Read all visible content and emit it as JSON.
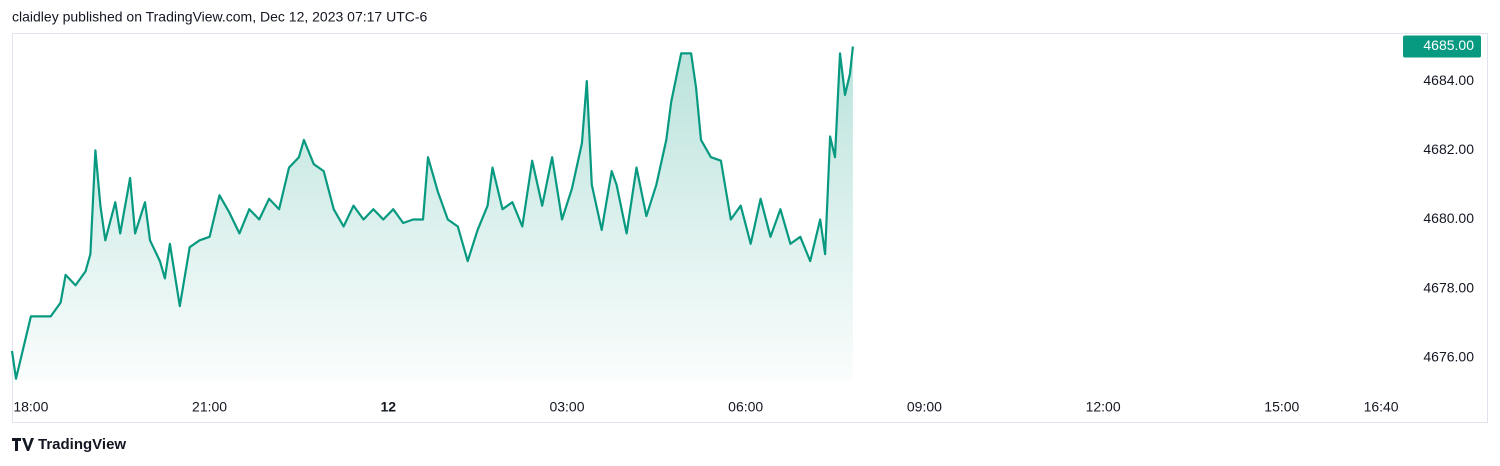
{
  "chart_data": {
    "type": "area-line",
    "title": "claidley published on TradingView.com, Dec 12, 2023 07:17 UTC-6",
    "brand": "TradingView",
    "color": "#089981",
    "grid": false,
    "last_value_label": "4685.00",
    "xlim": [
      "17:41",
      "16:54"
    ],
    "xticks": [
      "18:00",
      "21:00",
      {
        "value": "00:00",
        "label": "12"
      },
      "03:00",
      "06:00",
      "09:00",
      "12:00",
      "15:00",
      "16:40"
    ],
    "ylim": [
      4674.93,
      4685.39
    ],
    "yticks": [
      {
        "value": 4676,
        "label": "4676.00"
      },
      {
        "value": 4678,
        "label": "4678.00"
      },
      {
        "value": 4680,
        "label": "4680.00"
      },
      {
        "value": 4682,
        "label": "4682.00"
      },
      {
        "value": 4684,
        "label": "4684.00"
      }
    ],
    "x": [
      "17:41",
      "17:45",
      "17:55",
      "18:00",
      "18:20",
      "18:30",
      "18:35",
      "18:45",
      "18:55",
      "19:00",
      "19:05",
      "19:10",
      "19:15",
      "19:25",
      "19:30",
      "19:40",
      "19:45",
      "19:55",
      "20:00",
      "20:10",
      "20:15",
      "20:20",
      "20:30",
      "20:40",
      "20:50",
      "21:00",
      "21:10",
      "21:20",
      "21:30",
      "21:40",
      "21:50",
      "22:00",
      "22:10",
      "22:20",
      "22:30",
      "22:35",
      "22:45",
      "22:55",
      "23:05",
      "23:15",
      "23:25",
      "23:35",
      "23:45",
      "23:55",
      "00:05",
      "00:15",
      "00:25",
      "00:35",
      "00:40",
      "00:50",
      "01:00",
      "01:10",
      "01:20",
      "01:30",
      "01:40",
      "01:45",
      "01:55",
      "02:05",
      "02:15",
      "02:25",
      "02:35",
      "02:45",
      "02:55",
      "03:05",
      "03:15",
      "03:20",
      "03:25",
      "03:35",
      "03:45",
      "03:50",
      "04:00",
      "04:10",
      "04:20",
      "04:30",
      "04:40",
      "04:45",
      "04:55",
      "05:05",
      "05:10",
      "05:15",
      "05:25",
      "05:35",
      "05:45",
      "05:55",
      "06:05",
      "06:15",
      "06:25",
      "06:35",
      "06:45",
      "06:55",
      "07:05",
      "07:15",
      "07:20",
      "07:25",
      "07:30",
      "07:35",
      "07:40",
      "07:45",
      "07:48"
    ],
    "values": [
      4676.2,
      4675.4,
      4676.6,
      4677.2,
      4677.2,
      4677.6,
      4678.4,
      4678.1,
      4678.5,
      4679.0,
      4682.0,
      4680.4,
      4679.4,
      4680.5,
      4679.6,
      4681.2,
      4679.6,
      4680.5,
      4679.4,
      4678.8,
      4678.3,
      4679.3,
      4677.5,
      4679.2,
      4679.4,
      4679.5,
      4680.7,
      4680.2,
      4679.6,
      4680.3,
      4680.0,
      4680.6,
      4680.3,
      4681.5,
      4681.8,
      4682.3,
      4681.6,
      4681.4,
      4680.3,
      4679.8,
      4680.4,
      4680.0,
      4680.3,
      4680.0,
      4680.3,
      4679.9,
      4680.0,
      4680.0,
      4681.8,
      4680.8,
      4680.0,
      4679.8,
      4678.8,
      4679.7,
      4680.4,
      4681.5,
      4680.3,
      4680.5,
      4679.8,
      4681.7,
      4680.4,
      4681.8,
      4680.0,
      4680.9,
      4682.2,
      4684.0,
      4681.0,
      4679.7,
      4681.4,
      4681.0,
      4679.6,
      4681.5,
      4680.1,
      4681.0,
      4682.3,
      4683.4,
      4684.8,
      4684.8,
      4683.8,
      4682.3,
      4681.8,
      4681.7,
      4680.0,
      4680.4,
      4679.3,
      4680.6,
      4679.5,
      4680.3,
      4679.3,
      4679.5,
      4678.8,
      4680.0,
      4679.0,
      4682.4,
      4681.8,
      4684.8,
      4683.6,
      4684.2,
      4685.0
    ]
  }
}
